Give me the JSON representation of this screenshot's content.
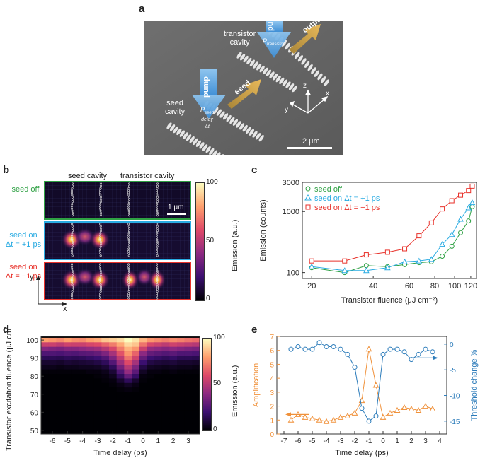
{
  "panels": {
    "a": "a",
    "b": "b",
    "c": "c",
    "d": "d",
    "e": "e"
  },
  "panel_a": {
    "pump_top": "pump",
    "output": "output",
    "transistor_cavity_line1": "transistor",
    "transistor_cavity_line2": "cavity",
    "p_transistor": "P",
    "p_transistor_sub": "transistor",
    "pump_left": "pump",
    "seed": "seed",
    "seed_cavity_line1": "seed",
    "seed_cavity_line2": "cavity",
    "p_seed": "P",
    "p_seed_sub": "seed",
    "delay": "delay",
    "delta_t": "Δt",
    "axis_z": "z",
    "axis_x": "x",
    "axis_y": "y",
    "scale_bar": "2 μm"
  },
  "panel_b": {
    "seed_cavity_label": "seed cavity",
    "transistor_cavity_label": "transistor cavity",
    "row1_label": "seed off",
    "row2_label_line1": "seed on",
    "row2_label_line2": "Δt = +1 ps",
    "row3_label_line1": "seed on",
    "row3_label_line2": "Δt = −1 ps",
    "scale_bar": "1 μm",
    "axis_y": "y",
    "axis_x": "x",
    "colorbar_label": "Emission (a.u.)",
    "colorbar_ticks": [
      "100",
      "50",
      "0"
    ],
    "colors": {
      "row1_border": "#2ea043",
      "row2_border": "#29abe2",
      "row3_border": "#e8322b"
    }
  },
  "panel_d": {
    "colorbar_label": "Emission (a.u.)",
    "colorbar_ticks": [
      "100",
      "50",
      "0"
    ]
  },
  "chart_data": [
    {
      "id": "c",
      "type": "line",
      "xscale": "log",
      "yscale": "log",
      "xlabel": "Transistor fluence (μJ cm⁻²)",
      "ylabel": "Emission (counts)",
      "xlim": [
        18,
        128
      ],
      "ylim": [
        80,
        3000
      ],
      "xticks": [
        20,
        40,
        60,
        80,
        100,
        120
      ],
      "xtick_labels": [
        "20",
        "40",
        "60",
        "80",
        "100",
        "120"
      ],
      "yticks": [
        100,
        1000,
        3000
      ],
      "ytick_labels": [
        "100",
        "1000",
        "3000"
      ],
      "series": [
        {
          "name": "seed off",
          "marker": "circle",
          "color": "#2ea043",
          "x": [
            20,
            29,
            37,
            47,
            57,
            67,
            77,
            87,
            97,
            107,
            117,
            122
          ],
          "y": [
            120,
            100,
            130,
            125,
            135,
            145,
            150,
            185,
            270,
            450,
            700,
            1200
          ]
        },
        {
          "name": "seed on Δt = +1 ps",
          "marker": "triangle",
          "color": "#29abe2",
          "x": [
            20,
            29,
            37,
            47,
            57,
            67,
            77,
            87,
            97,
            107,
            117,
            122
          ],
          "y": [
            125,
            108,
            108,
            120,
            150,
            155,
            165,
            290,
            420,
            750,
            1150,
            1400
          ]
        },
        {
          "name": "seed on Δt = −1 ps",
          "marker": "square",
          "color": "#e8322b",
          "x": [
            20,
            29,
            37,
            47,
            57,
            67,
            77,
            87,
            97,
            107,
            117,
            122
          ],
          "y": [
            155,
            155,
            195,
            215,
            245,
            400,
            650,
            1100,
            1500,
            1850,
            2200,
            2600
          ]
        }
      ]
    },
    {
      "id": "d",
      "type": "heatmap",
      "xlabel": "Time delay (ps)",
      "ylabel": "Transistor excitation fluence (μJ cm⁻²)",
      "xticks": [
        -6,
        -5,
        -4,
        -3,
        -2,
        -1,
        0,
        1,
        2,
        3
      ],
      "yticks": [
        50,
        60,
        70,
        80,
        90,
        100
      ],
      "xrange": [
        -6.75,
        3.75
      ],
      "yrange": [
        48,
        102
      ],
      "x_bins": [
        -6.5,
        -6,
        -5.5,
        -5,
        -4.5,
        -4,
        -3.5,
        -3,
        -2.5,
        -2,
        -1.5,
        -1,
        -0.5,
        0,
        0.5,
        1,
        1.5,
        2,
        2.5,
        3,
        3.5
      ],
      "y_bins": [
        100,
        97.5,
        95,
        92.5,
        90,
        87.5,
        85,
        82.5,
        80,
        77.5,
        75,
        72.5,
        70,
        67.5,
        65,
        62.5,
        60,
        57.5,
        55,
        52.5,
        50
      ],
      "values": [
        [
          80,
          78,
          75,
          80,
          76,
          75,
          80,
          82,
          88,
          90,
          93,
          100,
          95,
          85,
          78,
          75,
          72,
          75,
          73,
          70,
          68
        ],
        [
          55,
          55,
          52,
          56,
          55,
          55,
          58,
          60,
          66,
          72,
          82,
          92,
          88,
          70,
          58,
          55,
          52,
          56,
          54,
          52,
          50
        ],
        [
          38,
          36,
          35,
          38,
          38,
          40,
          42,
          44,
          50,
          58,
          72,
          84,
          78,
          55,
          42,
          40,
          38,
          40,
          38,
          36,
          35
        ],
        [
          25,
          25,
          24,
          26,
          25,
          27,
          28,
          30,
          36,
          46,
          62,
          78,
          66,
          40,
          30,
          28,
          26,
          28,
          25,
          25,
          24
        ],
        [
          15,
          15,
          14,
          16,
          15,
          16,
          18,
          20,
          25,
          36,
          52,
          70,
          56,
          30,
          20,
          18,
          16,
          18,
          15,
          15,
          14
        ],
        [
          8,
          8,
          7,
          9,
          8,
          9,
          10,
          12,
          16,
          26,
          44,
          60,
          46,
          20,
          12,
          10,
          9,
          10,
          8,
          8,
          7
        ],
        [
          4,
          4,
          3,
          4,
          4,
          5,
          5,
          6,
          9,
          16,
          34,
          50,
          36,
          12,
          6,
          5,
          4,
          5,
          4,
          4,
          3
        ],
        [
          1,
          1,
          1,
          1,
          1,
          1,
          2,
          2,
          4,
          9,
          25,
          42,
          28,
          6,
          2,
          2,
          1,
          2,
          1,
          1,
          1
        ],
        [
          0,
          0,
          0,
          0,
          0,
          0,
          0,
          1,
          2,
          5,
          16,
          30,
          18,
          2,
          1,
          0,
          0,
          0,
          0,
          0,
          0
        ],
        [
          0,
          0,
          0,
          0,
          0,
          0,
          0,
          0,
          1,
          2,
          8,
          16,
          8,
          1,
          0,
          0,
          0,
          0,
          0,
          0,
          0
        ],
        [
          0,
          0,
          0,
          0,
          0,
          0,
          0,
          0,
          0,
          1,
          3,
          6,
          3,
          0,
          0,
          0,
          0,
          0,
          0,
          0,
          0
        ],
        [
          0,
          0,
          0,
          0,
          0,
          0,
          0,
          0,
          0,
          0,
          1,
          2,
          1,
          0,
          0,
          0,
          0,
          0,
          0,
          0,
          0
        ],
        [
          0,
          0,
          0,
          0,
          0,
          0,
          0,
          0,
          0,
          0,
          0,
          0,
          0,
          0,
          0,
          0,
          0,
          0,
          0,
          0,
          0
        ],
        [
          0,
          0,
          0,
          0,
          0,
          0,
          0,
          0,
          0,
          0,
          0,
          0,
          0,
          0,
          0,
          0,
          0,
          0,
          0,
          0,
          0
        ],
        [
          0,
          0,
          0,
          0,
          0,
          0,
          0,
          0,
          0,
          0,
          0,
          0,
          0,
          0,
          0,
          0,
          0,
          0,
          0,
          0,
          0
        ],
        [
          0,
          0,
          0,
          0,
          0,
          0,
          0,
          0,
          0,
          0,
          0,
          0,
          0,
          0,
          0,
          0,
          0,
          0,
          0,
          0,
          0
        ],
        [
          0,
          0,
          0,
          0,
          0,
          0,
          0,
          0,
          0,
          0,
          0,
          0,
          0,
          0,
          0,
          0,
          0,
          0,
          0,
          0,
          0
        ],
        [
          0,
          0,
          0,
          0,
          0,
          0,
          0,
          0,
          0,
          0,
          0,
          0,
          0,
          0,
          0,
          0,
          0,
          0,
          0,
          0,
          0
        ],
        [
          0,
          0,
          0,
          0,
          0,
          0,
          0,
          0,
          0,
          0,
          0,
          0,
          0,
          0,
          0,
          0,
          0,
          0,
          0,
          0,
          0
        ],
        [
          0,
          0,
          0,
          0,
          0,
          0,
          0,
          0,
          0,
          0,
          0,
          0,
          0,
          0,
          0,
          0,
          0,
          0,
          0,
          0,
          0
        ],
        [
          0,
          0,
          0,
          0,
          0,
          0,
          0,
          0,
          0,
          0,
          0,
          0,
          0,
          0,
          0,
          0,
          0,
          0,
          0,
          0,
          0
        ]
      ]
    },
    {
      "id": "e",
      "type": "line",
      "xlabel": "Time delay (ps)",
      "ylabel_left": "Amplification",
      "ylabel_right": "Threshold change %",
      "xlim": [
        -7.5,
        4.5
      ],
      "xticks": [
        -7,
        -6,
        -5,
        -4,
        -3,
        -2,
        -1,
        0,
        1,
        2,
        3,
        4
      ],
      "ylim_left": [
        0,
        7
      ],
      "yticks_left": [
        0,
        1,
        2,
        3,
        4,
        5,
        6,
        7
      ],
      "ylim_right": [
        -17.5,
        1.5
      ],
      "yticks_right": [
        0,
        -5,
        -10,
        -15
      ],
      "series": [
        {
          "name": "Amplification",
          "axis": "left",
          "marker": "triangle",
          "color": "#f0913a",
          "x": [
            -6.5,
            -6,
            -5.5,
            -5,
            -4.5,
            -4,
            -3.5,
            -3,
            -2.5,
            -2,
            -1.5,
            -1,
            -0.5,
            0,
            0.5,
            1,
            1.5,
            2,
            2.5,
            3,
            3.5
          ],
          "y": [
            1.0,
            1.4,
            1.2,
            1.1,
            1.0,
            0.9,
            1.0,
            1.2,
            1.3,
            1.5,
            2.4,
            6.1,
            3.5,
            1.2,
            1.5,
            1.7,
            1.9,
            1.8,
            1.7,
            2.0,
            1.8
          ]
        },
        {
          "name": "Threshold change %",
          "axis": "right",
          "marker": "circle",
          "color": "#2b7bba",
          "x": [
            -6.5,
            -6,
            -5.5,
            -5,
            -4.5,
            -4,
            -3.5,
            -3,
            -2.5,
            -2,
            -1.5,
            -1,
            -0.5,
            0,
            0.5,
            1,
            1.5,
            2,
            2.5,
            3,
            3.5
          ],
          "y": [
            -1,
            -0.5,
            -1,
            -1,
            0.3,
            -0.5,
            -0.5,
            -1,
            -2,
            -4.5,
            -12.5,
            -15,
            -14,
            -2,
            -1,
            -1,
            -1.5,
            -3,
            -2,
            -1,
            -1.5
          ]
        }
      ]
    }
  ]
}
